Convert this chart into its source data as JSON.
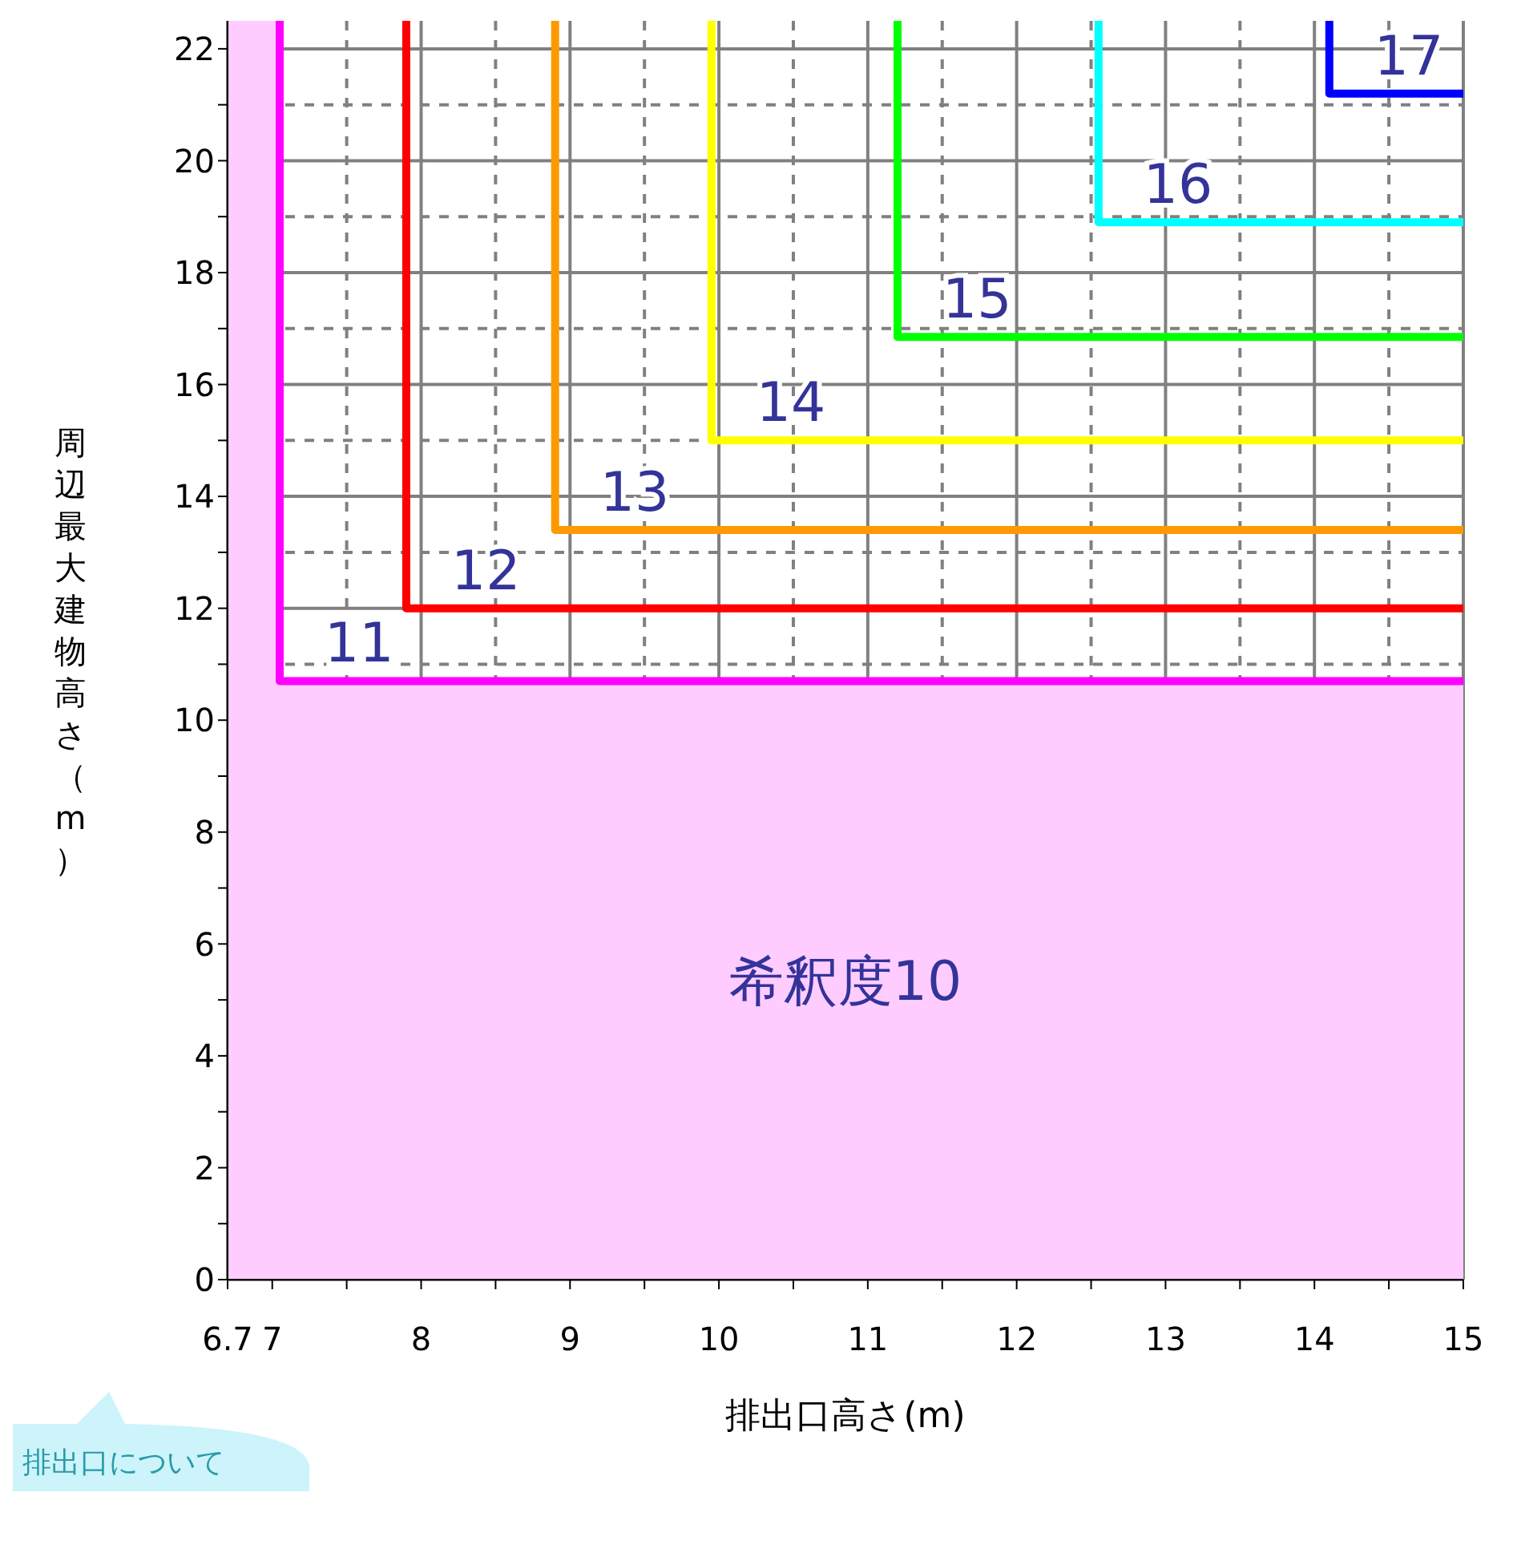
{
  "chart_data": {
    "type": "line",
    "xlabel": "排出口高さ(m)",
    "ylabel": "周辺最大建物高さ（m）",
    "xlim": [
      6.7,
      15
    ],
    "ylim": [
      0,
      22.5
    ],
    "xticks": [
      6.7,
      7,
      {
        "value": 7.5,
        "label": null
      },
      8,
      {
        "value": 8.5,
        "label": null
      },
      9,
      {
        "value": 9.5,
        "label": null
      },
      10,
      {
        "value": 10.5,
        "label": null
      },
      11,
      {
        "value": 11.5,
        "label": null
      },
      12,
      {
        "value": 12.5,
        "label": null
      },
      13,
      {
        "value": 13.5,
        "label": null
      },
      14,
      {
        "value": 14.5,
        "label": null
      },
      15
    ],
    "yticks": [
      0,
      {
        "value": 1,
        "label": null
      },
      2,
      {
        "value": 3,
        "label": null
      },
      4,
      {
        "value": 5,
        "label": null
      },
      6,
      {
        "value": 7,
        "label": null
      },
      8,
      {
        "value": 9,
        "label": null
      },
      10,
      {
        "value": 11,
        "label": null
      },
      12,
      {
        "value": 13,
        "label": null
      },
      14,
      {
        "value": 15,
        "label": null
      },
      16,
      {
        "value": 17,
        "label": null
      },
      18,
      {
        "value": 19,
        "label": null
      },
      20,
      {
        "value": 21,
        "label": null
      },
      22
    ],
    "grid": true,
    "legend": false,
    "marker": "none",
    "line_style": "solid",
    "series": [
      {
        "type": "line",
        "color": "#ff00ff",
        "x": [
          7.05,
          7.05,
          15
        ],
        "values": [
          22.5,
          10.7,
          10.7
        ]
      },
      {
        "type": "line",
        "color": "#ff0000",
        "x": [
          7.9,
          7.9,
          15
        ],
        "values": [
          22.5,
          12.0,
          12.0
        ]
      },
      {
        "type": "line",
        "color": "#ff9900",
        "x": [
          8.9,
          8.9,
          15
        ],
        "values": [
          22.5,
          13.4,
          13.4
        ]
      },
      {
        "type": "line",
        "color": "#ffff00",
        "x": [
          9.95,
          9.95,
          15
        ],
        "values": [
          22.5,
          15.0,
          15.0
        ]
      },
      {
        "type": "line",
        "color": "#00ff00",
        "x": [
          11.2,
          11.2,
          15
        ],
        "values": [
          22.5,
          16.85,
          16.85
        ]
      },
      {
        "type": "line",
        "color": "#00ffff",
        "x": [
          12.55,
          12.55,
          15
        ],
        "values": [
          22.5,
          18.9,
          18.9
        ]
      },
      {
        "type": "line",
        "color": "#0000ff",
        "x": [
          14.1,
          14.1,
          15
        ],
        "values": [
          22.5,
          21.2,
          21.2
        ]
      }
    ],
    "bands": [
      {
        "axis": "y",
        "from": 0,
        "to": 10.7,
        "label": "希釈度10",
        "color": "#ffccff"
      },
      {
        "axis": "x",
        "from": 6.7,
        "to": 7.05,
        "color": "#ffccff"
      }
    ],
    "annotations": [
      "11",
      "12",
      "13",
      "14",
      "15",
      "16",
      "17",
      "排出口について"
    ]
  }
}
